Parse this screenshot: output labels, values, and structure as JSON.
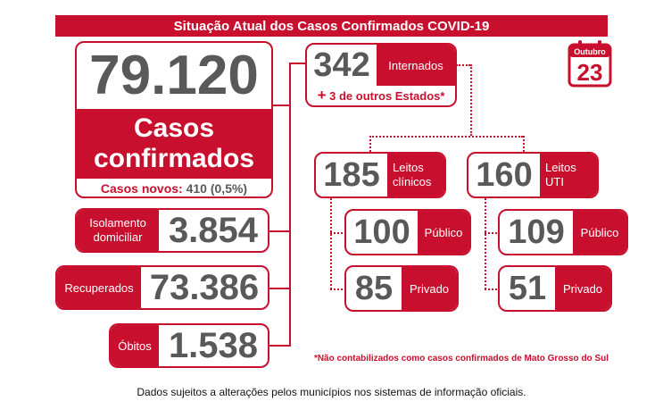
{
  "title": "Situação Atual dos Casos Confirmados COVID-19",
  "calendar": {
    "month": "Outubro",
    "day": "23",
    "icon": "calendar-icon"
  },
  "confirmed": {
    "value": "79.120",
    "label_line1": "Casos",
    "label_line2": "confirmados",
    "new_label": "Casos novos:",
    "new_value": "410 (0,5%)"
  },
  "isolation": {
    "label_line1": "Isolamento",
    "label_line2": "domiciliar",
    "value": "3.854"
  },
  "recovered": {
    "label": "Recuperados",
    "value": "73.386"
  },
  "deaths": {
    "label": "Óbitos",
    "value": "1.538"
  },
  "hospitalized": {
    "value": "342",
    "label": "Internados",
    "extra_plus": "+",
    "extra_text": "3 de outros Estados*"
  },
  "clinical": {
    "value": "185",
    "label_line1": "Leitos",
    "label_line2": "clínicos",
    "public": {
      "value": "100",
      "label": "Público"
    },
    "private": {
      "value": "85",
      "label": "Privado"
    }
  },
  "icu": {
    "value": "160",
    "label_line1": "Leitos",
    "label_line2": "UTI",
    "public": {
      "value": "109",
      "label": "Público"
    },
    "private": {
      "value": "51",
      "label": "Privado"
    }
  },
  "footnote": "*Não contabilizados como casos confirmados de Mato Grosso do Sul",
  "disclaimer": "Dados sujeitos a alterações pelos municípios nos sistemas de informação oficiais."
}
